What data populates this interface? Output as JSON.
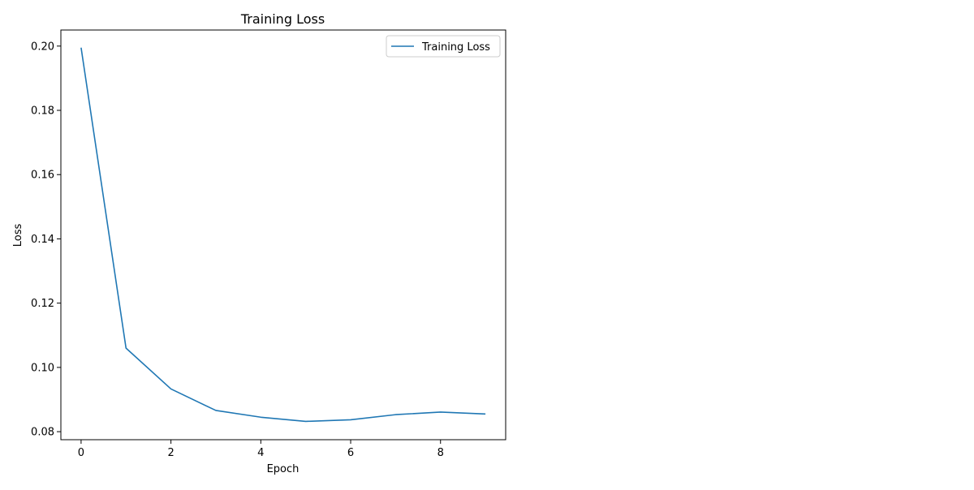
{
  "chart_data": {
    "type": "line",
    "title": "Training Loss",
    "xlabel": "Epoch",
    "ylabel": "Loss",
    "xlim": [
      -0.45,
      9.45
    ],
    "ylim": [
      0.0775,
      0.205
    ],
    "xticks": [
      0,
      2,
      4,
      6,
      8
    ],
    "xtick_labels": [
      "0",
      "2",
      "4",
      "6",
      "8"
    ],
    "yticks": [
      0.08,
      0.1,
      0.12,
      0.14,
      0.16,
      0.18,
      0.2
    ],
    "ytick_labels": [
      "0.08",
      "0.10",
      "0.12",
      "0.14",
      "0.16",
      "0.18",
      "0.20"
    ],
    "grid": false,
    "legend_position": "top-right",
    "series": [
      {
        "name": "Training Loss",
        "color": "#1f77b4",
        "x": [
          0,
          1,
          2,
          3,
          4,
          5,
          6,
          7,
          8,
          9
        ],
        "y": [
          0.1995,
          0.106,
          0.0933,
          0.0866,
          0.0845,
          0.0832,
          0.0837,
          0.0853,
          0.0861,
          0.0855
        ]
      }
    ]
  }
}
